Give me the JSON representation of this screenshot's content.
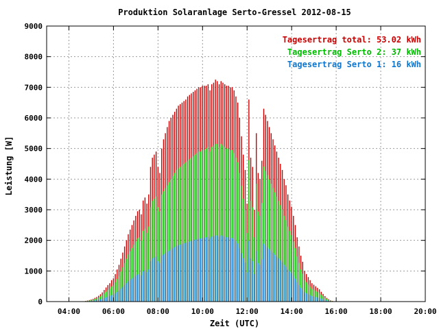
{
  "chart_data": {
    "type": "bar",
    "title": "Produktion Solaranlage Serto-Gressel 2012-08-15",
    "xlabel": "Zeit (UTC)",
    "ylabel": "Leistung [W]",
    "xlim": [
      3.0,
      20.0
    ],
    "ylim": [
      0,
      9000
    ],
    "x_ticks": [
      "04:00",
      "06:00",
      "08:00",
      "10:00",
      "12:00",
      "14:00",
      "16:00",
      "18:00",
      "20:00"
    ],
    "x_tick_values": [
      4,
      6,
      8,
      10,
      12,
      14,
      16,
      18,
      20
    ],
    "y_ticks": [
      "0",
      "1000",
      "2000",
      "3000",
      "4000",
      "5000",
      "6000",
      "7000",
      "8000",
      "9000"
    ],
    "y_tick_values": [
      0,
      1000,
      2000,
      3000,
      4000,
      5000,
      6000,
      7000,
      8000,
      9000
    ],
    "grid": true,
    "legend_position": "top-right",
    "legend": [
      "Tagesertrag total: 53.02 kWh",
      "Tagesertrag Serto 2: 37 kWh",
      "Tagesertrag Serto 1: 16 kWh"
    ],
    "colors": {
      "total": "#cc0000",
      "serto2": "#00bb00",
      "serto1": "#1177cc",
      "grid": "#999999"
    },
    "x_start": 4.75,
    "x_step": 0.0833,
    "series": [
      {
        "name": "Tagesertrag total",
        "values": [
          20,
          35,
          50,
          70,
          90,
          120,
          150,
          190,
          240,
          300,
          380,
          460,
          540,
          600,
          700,
          760,
          900,
          1050,
          1200,
          1400,
          1600,
          1800,
          2000,
          2200,
          2350,
          2500,
          2650,
          2800,
          2950,
          3000,
          2850,
          3300,
          3400,
          3200,
          3500,
          4400,
          4700,
          4800,
          4900,
          4400,
          4200,
          5000,
          5300,
          5500,
          5700,
          5900,
          6000,
          6100,
          6200,
          6300,
          6400,
          6450,
          6500,
          6550,
          6600,
          6700,
          6750,
          6800,
          6850,
          6900,
          6950,
          7000,
          7000,
          7050,
          7050,
          7050,
          7100,
          6900,
          7100,
          7150,
          7250,
          7200,
          7100,
          7200,
          7150,
          7100,
          7050,
          7050,
          7000,
          7000,
          6900,
          6700,
          6500,
          6000,
          5400,
          4800,
          4300,
          3200,
          6600,
          4700,
          4400,
          3000,
          5500,
          4200,
          4000,
          4600,
          6300,
          6100,
          5900,
          5700,
          5500,
          5300,
          5100,
          4900,
          4700,
          4500,
          4300,
          4000,
          3800,
          3500,
          3300,
          3100,
          2800,
          2500,
          2100,
          1800,
          1500,
          1300,
          1000,
          900,
          800,
          700,
          600,
          550,
          500,
          450,
          400,
          320,
          250,
          180,
          120,
          80,
          40,
          20
        ]
      },
      {
        "name": "Tagesertrag Serto 2",
        "values": [
          15,
          25,
          35,
          50,
          65,
          85,
          105,
          135,
          170,
          210,
          265,
          320,
          380,
          420,
          490,
          530,
          630,
          735,
          840,
          980,
          1120,
          1260,
          1400,
          1540,
          1645,
          1750,
          1855,
          1960,
          2065,
          2100,
          1995,
          2310,
          2380,
          2240,
          2450,
          3080,
          3290,
          3360,
          3430,
          3080,
          2940,
          3500,
          3600,
          3700,
          3800,
          3900,
          4000,
          4100,
          4200,
          4300,
          4350,
          4400,
          4450,
          4500,
          4550,
          4600,
          4650,
          4700,
          4750,
          4800,
          4850,
          4900,
          4900,
          4950,
          4950,
          5000,
          5050,
          4900,
          5050,
          5100,
          5150,
          5150,
          5050,
          5150,
          5100,
          5050,
          5000,
          5000,
          4950,
          4950,
          4850,
          4700,
          4550,
          4200,
          3780,
          3360,
          3010,
          2240,
          4620,
          3290,
          3080,
          2100,
          3850,
          2940,
          2800,
          3220,
          4410,
          4270,
          4130,
          3990,
          3850,
          3710,
          3570,
          3430,
          3290,
          3150,
          3010,
          2800,
          2660,
          2450,
          2310,
          2170,
          1960,
          1750,
          1470,
          1260,
          1050,
          910,
          700,
          630,
          560,
          490,
          420,
          385,
          350,
          315,
          280,
          224,
          175,
          126,
          84,
          56,
          28,
          14
        ]
      },
      {
        "name": "Tagesertrag Serto 1",
        "values": [
          6,
          10,
          15,
          21,
          27,
          36,
          45,
          57,
          72,
          90,
          114,
          138,
          162,
          180,
          210,
          228,
          270,
          315,
          360,
          420,
          480,
          540,
          600,
          660,
          705,
          750,
          795,
          840,
          885,
          900,
          855,
          990,
          1020,
          960,
          1050,
          1320,
          1410,
          1440,
          1470,
          1320,
          1260,
          1500,
          1540,
          1580,
          1620,
          1660,
          1700,
          1740,
          1780,
          1820,
          1840,
          1860,
          1880,
          1900,
          1920,
          1940,
          1960,
          1980,
          2000,
          2020,
          2040,
          2060,
          2060,
          2080,
          2080,
          2100,
          2120,
          2060,
          2120,
          2140,
          2160,
          2160,
          2120,
          2160,
          2140,
          2120,
          2100,
          2100,
          2080,
          2080,
          2040,
          1980,
          1900,
          1750,
          1580,
          1420,
          1270,
          950,
          1980,
          1410,
          1320,
          900,
          1650,
          1260,
          1200,
          1380,
          1890,
          1830,
          1770,
          1710,
          1650,
          1590,
          1530,
          1470,
          1410,
          1350,
          1290,
          1200,
          1140,
          1050,
          990,
          930,
          840,
          750,
          630,
          540,
          450,
          390,
          300,
          270,
          240,
          210,
          180,
          165,
          150,
          135,
          120,
          96,
          75,
          54,
          36,
          24,
          12,
          6
        ]
      }
    ]
  }
}
